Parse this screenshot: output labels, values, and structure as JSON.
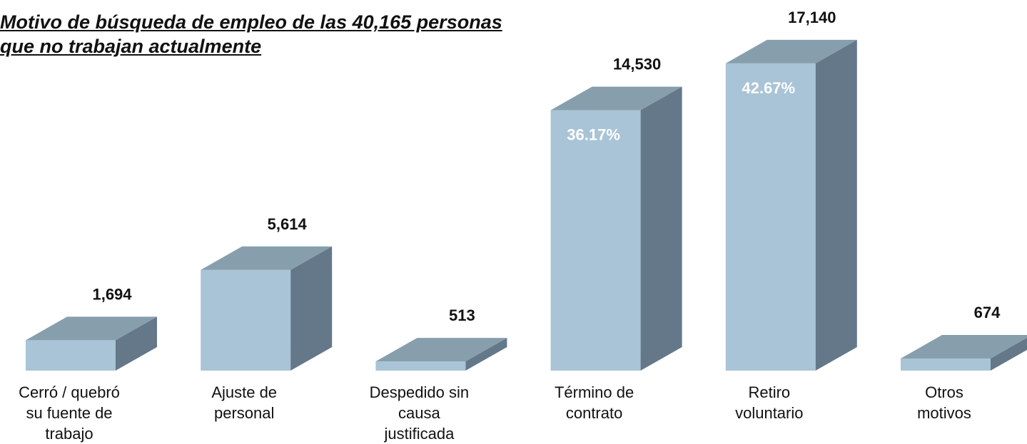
{
  "chart_data": {
    "type": "bar3d",
    "title": "Motivo de búsqueda de empleo de las 40,165 personas que no trabajan actualmente",
    "categories": [
      "Cerró / quebró\nsu fuente de\ntrabajo",
      "Ajuste de\npersonal",
      "Despedido sin\ncausa\njustificada",
      "Término de\ncontrato",
      "Retiro\nvoluntario",
      "Otros\nmotivos"
    ],
    "values": [
      1694,
      5614,
      513,
      14530,
      17140,
      674
    ],
    "value_labels": [
      "1,694",
      "5,614",
      "513",
      "14,530",
      "17,140",
      "674"
    ],
    "percent_labels": [
      null,
      null,
      null,
      "36.17%",
      "42.67%",
      null
    ],
    "colors": {
      "front": "#a8c4d6",
      "top": "#879fad",
      "side": "#64788a"
    }
  }
}
